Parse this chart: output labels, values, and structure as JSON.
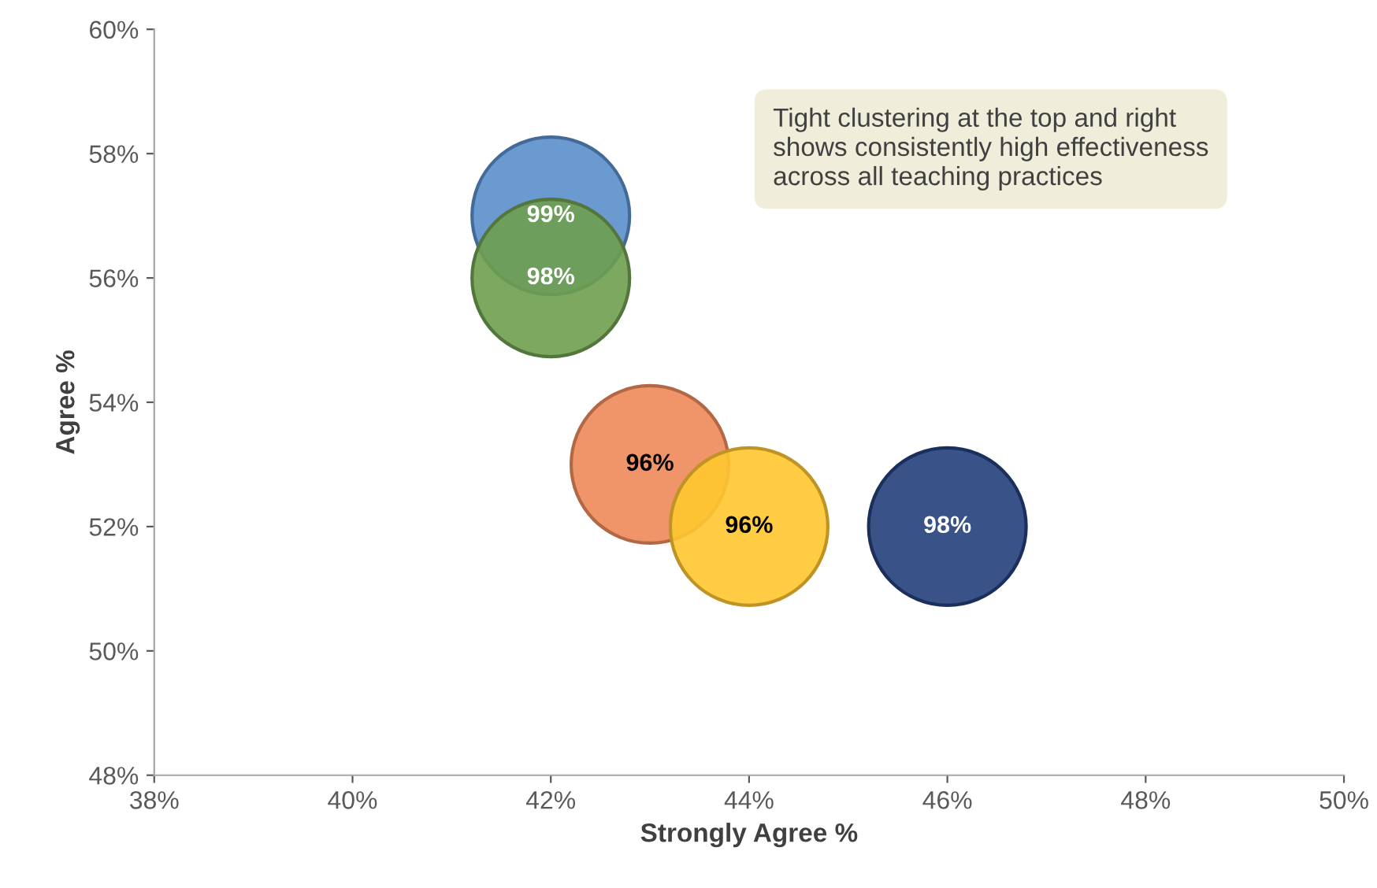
{
  "chart_data": {
    "type": "bubble",
    "xlabel": "Strongly Agree %",
    "ylabel": "Agree %",
    "x": [
      42,
      42,
      43,
      44,
      46
    ],
    "values": [
      57,
      56,
      53,
      52,
      52
    ],
    "sizes": [
      1,
      1,
      1,
      1,
      1
    ],
    "colors": [
      "#5b8fcb",
      "#6e9e4e",
      "#ee8a5a",
      "#ffc630",
      "#243f7a"
    ],
    "xlim": [
      38,
      50
    ],
    "xticks": [
      {
        "value": 38,
        "label": "38%"
      },
      {
        "value": 40,
        "label": "40%"
      },
      {
        "value": 42,
        "label": "42%"
      },
      {
        "value": 44,
        "label": "44%"
      },
      {
        "value": 46,
        "label": "46%"
      },
      {
        "value": 48,
        "label": "48%"
      },
      {
        "value": 50,
        "label": "50%"
      }
    ],
    "ylim": [
      48,
      60
    ],
    "yticks": [
      {
        "value": 48,
        "label": "48%"
      },
      {
        "value": 50,
        "label": "50%"
      },
      {
        "value": 52,
        "label": "52%"
      },
      {
        "value": 54,
        "label": "54%"
      },
      {
        "value": 56,
        "label": "56%"
      },
      {
        "value": 58,
        "label": "58%"
      },
      {
        "value": 60,
        "label": "60%"
      }
    ],
    "grid": false,
    "annotations": [
      "Tight clustering at the top and right shows consistently high effectiveness across all teaching practices",
      {
        "text": "99%",
        "x": 42,
        "y": 57
      },
      {
        "text": "98%",
        "x": 42,
        "y": 56
      },
      {
        "text": "96%",
        "x": 43,
        "y": 53
      },
      {
        "text": "96%",
        "x": 44,
        "y": 52
      },
      {
        "text": "98%",
        "x": 46,
        "y": 52
      }
    ]
  }
}
